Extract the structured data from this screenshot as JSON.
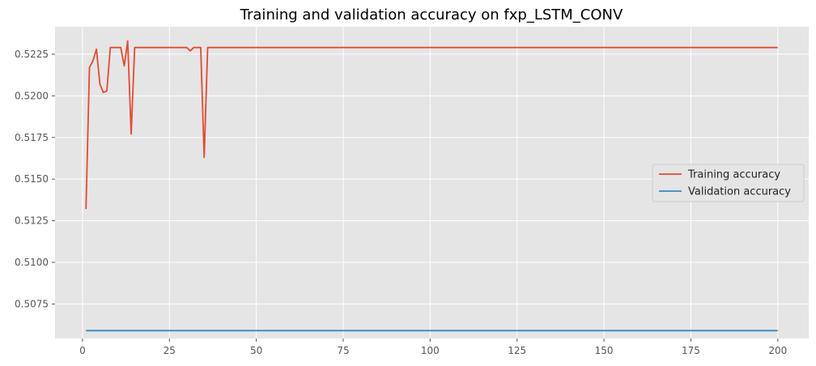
{
  "chart_data": {
    "type": "line",
    "title": "Training and validation accuracy on fxp_LSTM_CONV",
    "xlabel": "",
    "ylabel": "",
    "xlim": [
      -7.9,
      208.9
    ],
    "ylim": [
      0.50543,
      0.52415
    ],
    "x_ticks": [
      0,
      25,
      50,
      75,
      100,
      125,
      150,
      175,
      200
    ],
    "x_tick_labels": [
      "0",
      "25",
      "50",
      "75",
      "100",
      "125",
      "150",
      "175",
      "200"
    ],
    "y_ticks": [
      0.5075,
      0.51,
      0.5125,
      0.515,
      0.5175,
      0.52,
      0.5225
    ],
    "y_tick_labels": [
      "0.5075",
      "0.5100",
      "0.5125",
      "0.5150",
      "0.5175",
      "0.5200",
      "0.5225"
    ],
    "grid": true,
    "legend_position": "center-right",
    "series": [
      {
        "name": "Training accuracy",
        "color": "#E24A33",
        "x": [
          1,
          2,
          3,
          4,
          5,
          6,
          7,
          8,
          9,
          10,
          11,
          12,
          13,
          14,
          15,
          16,
          17,
          18,
          19,
          20,
          21,
          22,
          23,
          24,
          25,
          26,
          27,
          28,
          29,
          30,
          31,
          32,
          33,
          34,
          35,
          36,
          37,
          200
        ],
        "y": [
          0.5132,
          0.5217,
          0.5221,
          0.5228,
          0.5207,
          0.5202,
          0.5203,
          0.5229,
          0.5229,
          0.5229,
          0.5229,
          0.5218,
          0.5233,
          0.5177,
          0.5229,
          0.5229,
          0.5229,
          0.5229,
          0.5229,
          0.5229,
          0.5229,
          0.5229,
          0.5229,
          0.5229,
          0.5229,
          0.5229,
          0.5229,
          0.5229,
          0.5229,
          0.5229,
          0.5227,
          0.5229,
          0.5229,
          0.5229,
          0.5163,
          0.5229,
          0.5229,
          0.5229
        ]
      },
      {
        "name": "Validation accuracy",
        "color": "#348ABD",
        "x": [
          1,
          200
        ],
        "y": [
          0.5059,
          0.5059
        ]
      }
    ]
  }
}
